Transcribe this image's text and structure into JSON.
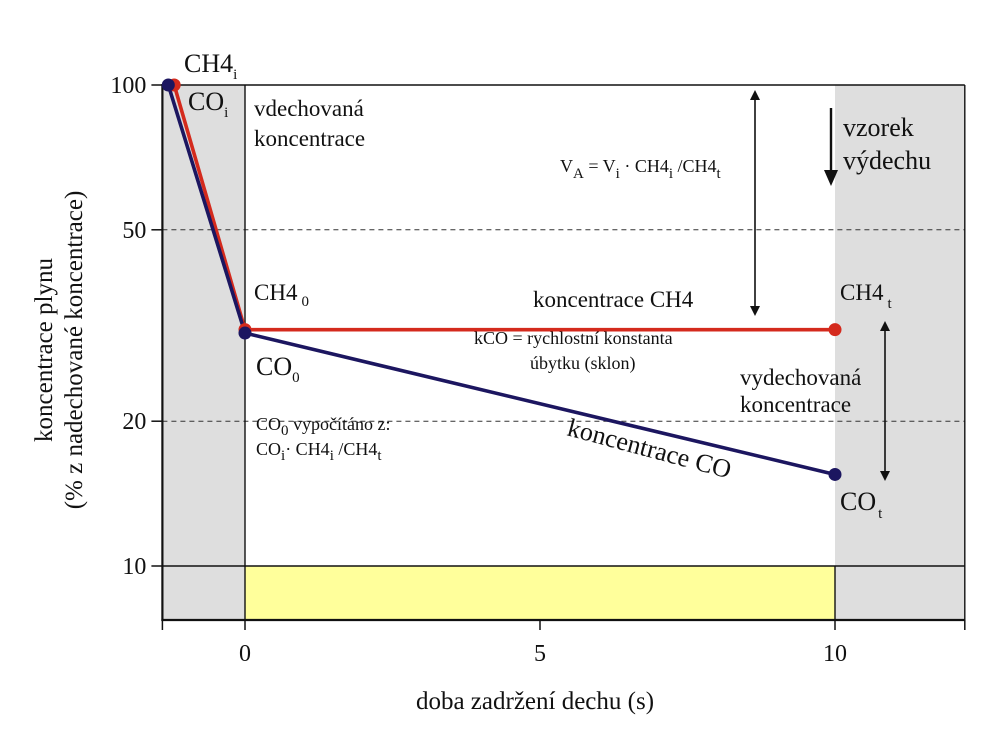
{
  "chart_data": {
    "type": "line",
    "xlabel": "doba zadržení dechu (s)",
    "ylabel_line1": "koncentrace plynu",
    "ylabel_line2": "(% z nadechované koncentrace)",
    "x_ticks": [
      "0",
      "5",
      "10"
    ],
    "y_ticks": [
      "10",
      "20",
      "50",
      "100"
    ],
    "xlim": [
      -1.4,
      12.2
    ],
    "ylim": [
      6.5,
      100
    ],
    "y_scale": "log",
    "grid": {
      "dashed_y": [
        20,
        50
      ]
    },
    "colors": {
      "ch4": "#d42a1d",
      "co": "#1c1660",
      "shade": "#dedede",
      "band": "#ffff9b"
    },
    "series": [
      {
        "name": "koncentrace CH4",
        "points": [
          {
            "x": -1.2,
            "y": 100
          },
          {
            "x": 0,
            "y": 31
          },
          {
            "x": 10,
            "y": 31
          }
        ]
      },
      {
        "name": "koncentrace CO",
        "points": [
          {
            "x": -1.3,
            "y": 100
          },
          {
            "x": 0,
            "y": 30.5
          },
          {
            "x": 10,
            "y": 15.5
          }
        ]
      }
    ],
    "annotations": {
      "ch4_i": "CH4",
      "ch4_i_sub": "i",
      "co_i": "CO",
      "co_i_sub": "i",
      "vdechovana_1": "vdechovaná",
      "vdechovana_2": "koncentrace",
      "va_A": "V",
      "va_A_sub": "A",
      "va_eq": " = V",
      "va_i_sub": "i",
      "va_mid": " · CH4",
      "va_mid_sub": "i",
      "va_tail": " /CH4",
      "va_tail_sub": "t",
      "vzorek_1": "vzorek",
      "vzorek_2": "výdechu",
      "ch4_0": "CH4",
      "ch4_0_sub": "0",
      "koncentrace_ch4": "koncentrace CH4",
      "ch4_t": "CH4",
      "ch4_t_sub": "t",
      "kco_1": "kCO = rychlostní konstanta",
      "kco_2": "úbytku  (sklon)",
      "co_0": "CO",
      "co_0_sub": "0",
      "vydechovana_1": "vydechovaná",
      "vydechovana_2": "koncentrace",
      "calc_1a": "CO",
      "calc_1a_sub": "0",
      "calc_1b": " vypočítáno z:",
      "calc_2a": "CO",
      "calc_2a_sub": "i",
      "calc_2b": "· CH4",
      "calc_2b_sub": "i",
      "calc_2c": " /CH4",
      "calc_2c_sub": "t",
      "koncentrace_co": "koncentrace CO",
      "co_t": "CO",
      "co_t_sub": "t"
    }
  }
}
